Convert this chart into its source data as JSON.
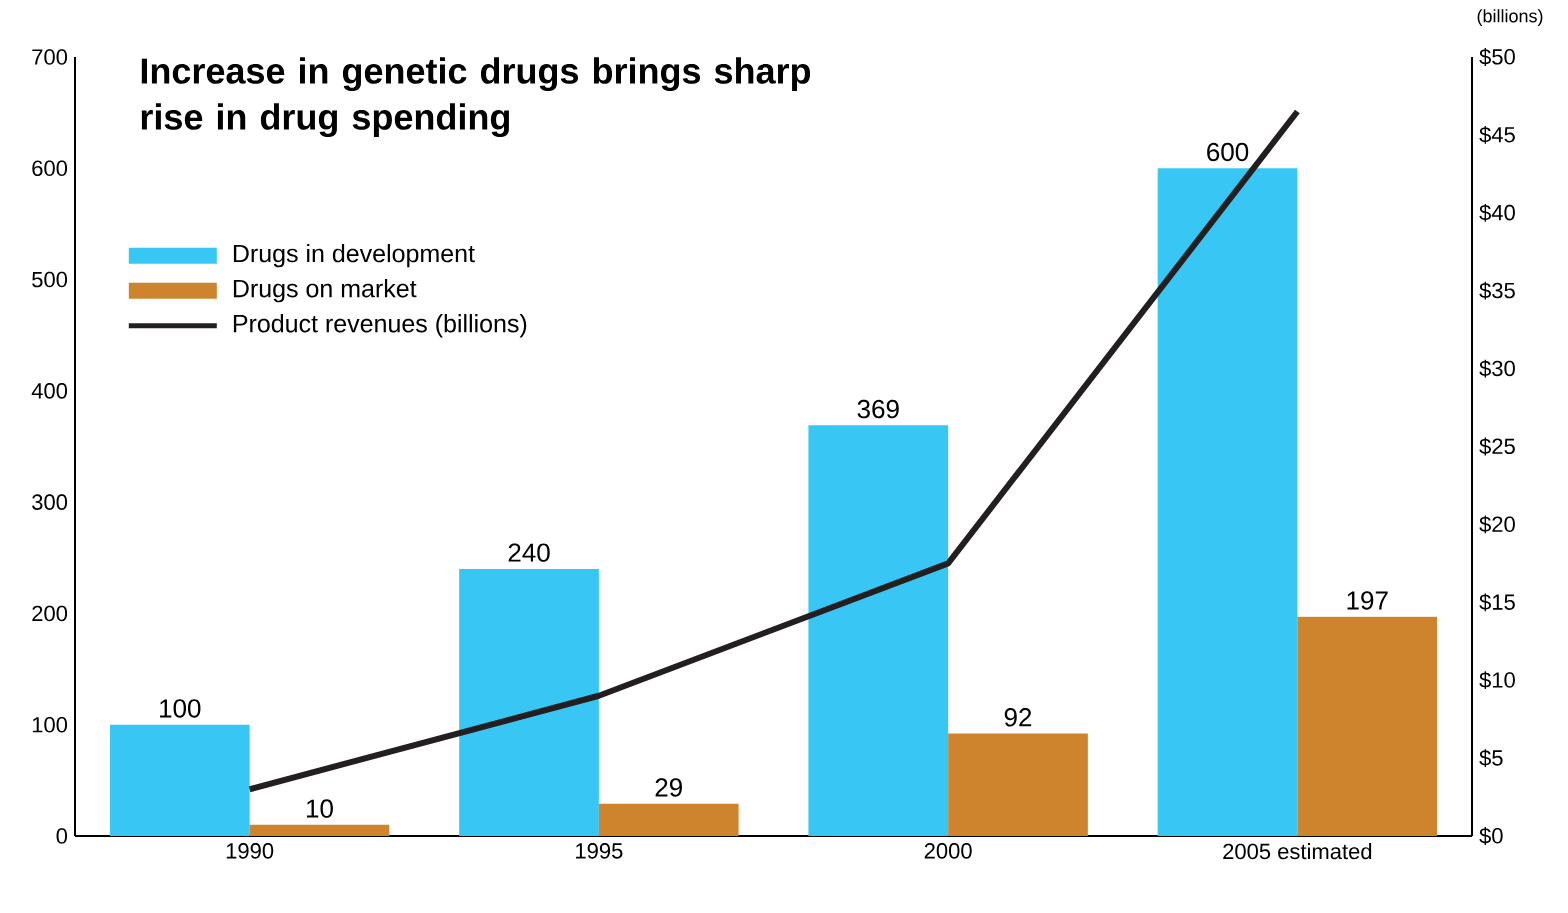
{
  "chart_data": {
    "type": "bar",
    "title": "Increase in genetic drugs brings sharp rise in drug spending",
    "y2label": "(billions)",
    "categories": [
      "1990",
      "1995",
      "2000",
      "2005 estimated"
    ],
    "series": [
      {
        "name": "Drugs in development",
        "color": "#38c6f4",
        "values": [
          100,
          240,
          369,
          600
        ],
        "value_labels": [
          "100",
          "240",
          "369",
          "600"
        ]
      },
      {
        "name": "Drugs on market",
        "color": "#cd842c",
        "values": [
          10,
          29,
          92,
          197
        ],
        "value_labels": [
          "10",
          "29",
          "92",
          "197"
        ]
      },
      {
        "name": "Product revenues (billions)",
        "type": "line",
        "axis": "y2",
        "color": "#231f20",
        "values": [
          3,
          9,
          17.5,
          46.5
        ]
      }
    ],
    "ylim": [
      0,
      700
    ],
    "yticks": [
      0,
      100,
      200,
      300,
      400,
      500,
      600,
      700
    ],
    "y2lim": [
      0,
      50
    ],
    "y2ticks": [
      {
        "value": 0,
        "label": "$0"
      },
      {
        "value": 5,
        "label": "$5"
      },
      {
        "value": 10,
        "label": "$10"
      },
      {
        "value": 15,
        "label": "$15"
      },
      {
        "value": 20,
        "label": "$20"
      },
      {
        "value": 25,
        "label": "$25"
      },
      {
        "value": 30,
        "label": "$30"
      },
      {
        "value": 35,
        "label": "$35"
      },
      {
        "value": 40,
        "label": "$40"
      },
      {
        "value": 45,
        "label": "$45"
      },
      {
        "value": 50,
        "label": "$50"
      }
    ],
    "legend": "top left"
  }
}
